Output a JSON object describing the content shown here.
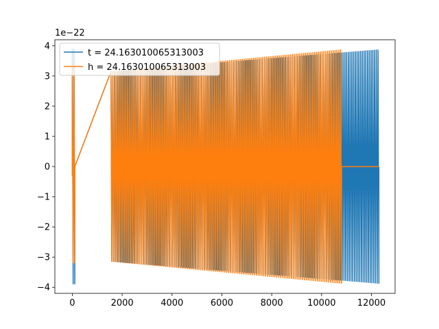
{
  "chart_data": {
    "type": "line",
    "title": "",
    "xlabel": "",
    "ylabel": "",
    "y_offset_label": "1e−22",
    "xlim": [
      -700,
      12950
    ],
    "ylim": [
      -4.2,
      4.2
    ],
    "xticks": [
      0,
      2000,
      4000,
      6000,
      8000,
      10000,
      12000
    ],
    "yticks": [
      -4,
      -3,
      -2,
      -1,
      0,
      1,
      2,
      3,
      4
    ],
    "xtick_labels": [
      "0",
      "2000",
      "4000",
      "6000",
      "8000",
      "10000",
      "12000"
    ],
    "ytick_labels": [
      "−4",
      "−3",
      "−2",
      "−1",
      "0",
      "1",
      "2",
      "3",
      "4"
    ],
    "grid": false,
    "legend_position": "top-left",
    "series": [
      {
        "name": "t = 24.163010065313003",
        "color": "#1f77b4",
        "segments": [
          {
            "x_start": 0,
            "x_end": 100,
            "amp_start": 3.9,
            "amp_end": 3.9
          },
          {
            "x_start": 1550,
            "x_end": 12300,
            "amp_start": 3.15,
            "amp_end": 3.88
          }
        ],
        "oscillation_count": 155
      },
      {
        "name": "h = 24.163010065313003",
        "color": "#ff7f0e",
        "segments": [
          {
            "x_start": 0,
            "x_end": 100,
            "amp_start": 3.2,
            "amp_end": 3.2
          },
          {
            "x_start": 1550,
            "x_end": 10800,
            "amp_start": 3.15,
            "amp_end": 3.88
          }
        ],
        "flat_after": [
          10800,
          12300
        ],
        "oscillation_count": 126
      }
    ]
  }
}
